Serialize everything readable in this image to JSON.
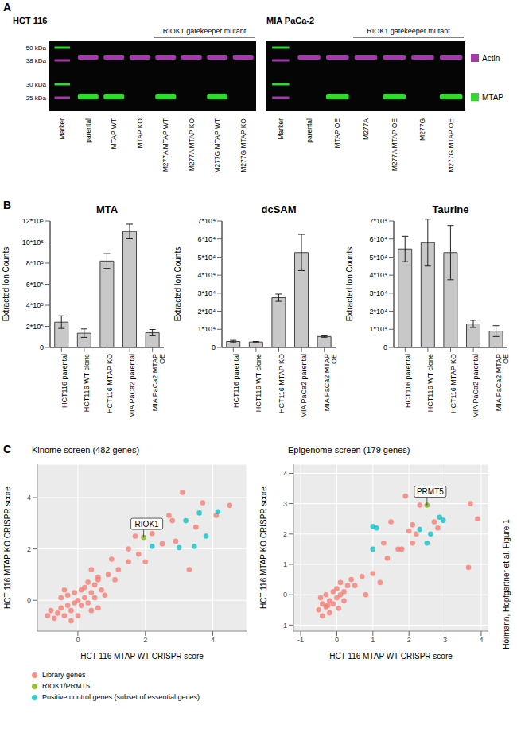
{
  "panel_labels": [
    "A",
    "B",
    "C"
  ],
  "side_text": "Hörmann, Hopfgartner et al. Figure 1",
  "blot_panel": {
    "blots": [
      {
        "title": "HCT 116",
        "group_label": "RIOK1 gatekeeper mutant",
        "group_lanes": [
          4,
          7
        ],
        "marker_labels": [
          "50 kDa",
          "38 kDa",
          "30 kDa",
          "25 kDa"
        ],
        "lanes": [
          {
            "label": "Marker",
            "ladder": true,
            "actin": false,
            "mtap": false
          },
          {
            "label": "parental",
            "ladder": false,
            "actin": true,
            "mtap": true
          },
          {
            "label": "MTAP WT",
            "ladder": false,
            "actin": true,
            "mtap": true
          },
          {
            "label": "MTAP KO",
            "ladder": false,
            "actin": true,
            "mtap": false
          },
          {
            "label": "M277A MTAP WT",
            "ladder": false,
            "actin": true,
            "mtap": true
          },
          {
            "label": "M277A MTAP KO",
            "ladder": false,
            "actin": true,
            "mtap": false
          },
          {
            "label": "M277G MTAP WT",
            "ladder": false,
            "actin": true,
            "mtap": true
          },
          {
            "label": "M277G MTAP KO",
            "ladder": false,
            "actin": true,
            "mtap": false
          }
        ]
      },
      {
        "title": "MIA PaCa-2",
        "group_label": "RIOK1 gatekeeper mutant",
        "group_lanes": [
          3,
          6
        ],
        "lanes": [
          {
            "label": "Marker",
            "ladder": true,
            "actin": false,
            "mtap": false
          },
          {
            "label": "parental",
            "ladder": false,
            "actin": true,
            "mtap": false
          },
          {
            "label": "MTAP OE",
            "ladder": false,
            "actin": true,
            "mtap": true
          },
          {
            "label": "M277A",
            "ladder": false,
            "actin": true,
            "mtap": false
          },
          {
            "label": "M277A MTAP OE",
            "ladder": false,
            "actin": true,
            "mtap": true
          },
          {
            "label": "M277G",
            "ladder": false,
            "actin": true,
            "mtap": false
          },
          {
            "label": "M277G MTAP OE",
            "ladder": false,
            "actin": true,
            "mtap": true
          }
        ]
      }
    ],
    "legend": [
      {
        "text": "Actin",
        "color": "#a23aa9"
      },
      {
        "text": "MTAP",
        "color": "#33d633"
      }
    ]
  },
  "chart_data": [
    {
      "type": "bar",
      "title": "MTA",
      "ylabel": "Extracted Ion Counts",
      "categories": [
        "HCT116 parental",
        "HCT116 WT clone",
        "HCT116 MTAP KO",
        "MIA PaCa2 parental",
        "MIA PaCa2 MTAP OE"
      ],
      "values": [
        240000,
        135000,
        820000,
        1100000,
        140000
      ],
      "errors": [
        60000,
        40000,
        70000,
        70000,
        30000
      ],
      "color": "#c8c8c8",
      "ylim": [
        0,
        1200000
      ],
      "yticks": [
        0,
        {
          "value": 200000,
          "label": "2*10⁵"
        },
        {
          "value": 400000,
          "label": "4*10⁵"
        },
        {
          "value": 600000,
          "label": "6*10⁵"
        },
        {
          "value": 800000,
          "label": "8*10⁵"
        },
        {
          "value": 1000000,
          "label": "10*10⁵"
        },
        {
          "value": 1200000,
          "label": "12*10⁵"
        }
      ]
    },
    {
      "type": "bar",
      "title": "dcSAM",
      "ylabel": "Extracted Ion Counts",
      "categories": [
        "HCT116 parental",
        "HCT116 WT clone",
        "HCT116 MTAP KO",
        "MIA PaCa2 parental",
        "MIA PaCa2 MTAP OE"
      ],
      "values": [
        3300,
        3000,
        27500,
        52500,
        6000
      ],
      "errors": [
        600,
        300,
        2000,
        10000,
        400
      ],
      "color": "#c8c8c8",
      "ylim": [
        0,
        70000
      ],
      "yticks": [
        0,
        {
          "value": 10000,
          "label": "1*10⁴"
        },
        {
          "value": 20000,
          "label": "2*10⁴"
        },
        {
          "value": 30000,
          "label": "3*10⁴"
        },
        {
          "value": 40000,
          "label": "4*10⁴"
        },
        {
          "value": 50000,
          "label": "5*10⁴"
        },
        {
          "value": 60000,
          "label": "6*10⁴"
        },
        {
          "value": 70000,
          "label": "7*10⁴"
        }
      ]
    },
    {
      "type": "bar",
      "title": "Taurine",
      "ylabel": "Extracted Ion Counts",
      "categories": [
        "HCT116 parental",
        "HCT116 WT clone",
        "HCT116 MTAP KO",
        "MIA PaCa2 parental",
        "MIA PaCa2 MTAP OE"
      ],
      "values": [
        54500,
        58000,
        52500,
        13000,
        9000
      ],
      "errors": [
        7000,
        13000,
        15000,
        2000,
        3000
      ],
      "color": "#c8c8c8",
      "ylim": [
        0,
        70000
      ],
      "yticks": [
        0,
        {
          "value": 10000,
          "label": "1*10⁴"
        },
        {
          "value": 20000,
          "label": "2*10⁴"
        },
        {
          "value": 30000,
          "label": "3*10⁴"
        },
        {
          "value": 40000,
          "label": "4*10⁴"
        },
        {
          "value": 50000,
          "label": "5*10⁴"
        },
        {
          "value": 60000,
          "label": "6*10⁴"
        },
        {
          "value": 70000,
          "label": "7*10⁴"
        }
      ]
    },
    {
      "type": "scatter",
      "title": "Kinome screen (482 genes)",
      "xlabel": "HCT 116 MTAP WT CRISPR score",
      "ylabel": "HCT 116 MTAP KO CRISPR score",
      "xlim": [
        -1.2,
        5
      ],
      "xticks": [
        0,
        2,
        4
      ],
      "ylim": [
        -1.2,
        5.3
      ],
      "yticks": [
        0,
        2,
        4
      ],
      "grid": true,
      "legend": "bottom",
      "series": [
        {
          "name": "Library genes",
          "color": "#F8766D",
          "x": [
            -0.6,
            -0.5,
            -0.4,
            -0.3,
            -0.2,
            -0.1,
            0,
            0.1,
            0.2,
            0.3,
            -0.3,
            -0.1,
            0.1,
            0.2,
            0.4,
            -0.5,
            -0.7,
            -0.8,
            0.5,
            0.6,
            0,
            -0.2,
            0.3,
            -0.4,
            0.6,
            0.8,
            -0.9,
            0.4,
            0.7,
            0.5,
            0.9,
            1.1,
            0.4,
            1.2,
            0.6,
            1.5,
            1.0,
            1.8,
            1.5,
            2.0,
            3.3,
            1.7,
            2.2,
            2.5,
            2.9,
            2.4,
            2.8,
            2.7,
            3.5,
            3.7,
            4.1,
            4.5,
            3.1
          ],
          "y": [
            -0.5,
            -0.3,
            -0.6,
            -0.2,
            -0.4,
            -0.1,
            0,
            -0.2,
            0.1,
            -0.1,
            0.2,
            0.3,
            0.4,
            0.5,
            0.3,
            0.1,
            -0.7,
            -0.4,
            0.1,
            -0.3,
            -0.6,
            -0.8,
            0.7,
            0.4,
            0.8,
            0.2,
            -0.6,
            -0.4,
            0.4,
            0.6,
            1.0,
            0.8,
            1.2,
            1.2,
            0.9,
            1.5,
            1.6,
            1.8,
            2.0,
            1.5,
            1.2,
            2.5,
            2.6,
            2.2,
            2.3,
            3.0,
            3.1,
            3.3,
            2.85,
            3.8,
            3.3,
            3.7,
            4.2
          ]
        },
        {
          "name": "RIOK1/PRMT5",
          "color": "#7CAE00",
          "x": [
            1.95
          ],
          "y": [
            2.45
          ]
        },
        {
          "name": "Positive control genes (subset of essential genes)",
          "color": "#00BFC4",
          "x": [
            4.15,
            3.6,
            3.2,
            3.45,
            3.0,
            2.2,
            3.8
          ],
          "y": [
            3.45,
            3.4,
            3.1,
            2.1,
            2.05,
            2.1,
            2.5
          ]
        }
      ],
      "annotations": [
        {
          "text": "RIOK1",
          "x": 1.95,
          "y": 2.45
        }
      ]
    },
    {
      "type": "scatter",
      "title": "Epigenome screen (179 genes)",
      "xlabel": "HCT 116 MTAP WT CRISPR score",
      "ylabel": "HCT 116 MTAP KO CRISPR score",
      "xlim": [
        -1.2,
        4.2
      ],
      "xticks": [
        -1,
        0,
        1,
        2,
        3,
        4
      ],
      "ylim": [
        -1.2,
        4.3
      ],
      "yticks": [
        -1,
        0,
        1,
        2,
        3,
        4
      ],
      "grid": true,
      "series": [
        {
          "color": "#F8766D",
          "x": [
            -0.5,
            -0.4,
            -0.3,
            -0.2,
            -0.1,
            0,
            0.1,
            0.2,
            -0.3,
            -0.45,
            -0.2,
            0,
            0.3,
            -0.1,
            0.2,
            -0.4,
            0.1,
            -0.25,
            0.05,
            0.4,
            0.5,
            0.7,
            0.8,
            1.0,
            1.2,
            1.4,
            1.7,
            1.8,
            1.3,
            2.1,
            2.0,
            2.2,
            1.5,
            2.8,
            2.7,
            3.65,
            1.9,
            2.3,
            3.7,
            3.9,
            2.1
          ],
          "y": [
            -0.5,
            -0.3,
            -0.4,
            -0.2,
            -0.3,
            -0.1,
            0,
            0.1,
            0,
            -0.1,
            -0.6,
            0.2,
            0.3,
            0.1,
            -0.2,
            -0.7,
            0.4,
            -0.35,
            -0.45,
            0.5,
            0.3,
            0.6,
            0,
            0.7,
            0.4,
            1.2,
            1.5,
            1.5,
            1.7,
            1.7,
            2.1,
            2.0,
            2.4,
            2.2,
            2.4,
            0.9,
            3.25,
            2.95,
            3.0,
            2.5,
            2.3
          ]
        },
        {
          "color": "#7CAE00",
          "x": [
            2.5
          ],
          "y": [
            2.95
          ]
        },
        {
          "color": "#00BFC4",
          "x": [
            1.0,
            1.1,
            1.0,
            2.3,
            2.5,
            2.6,
            2.85,
            2.95
          ],
          "y": [
            2.25,
            2.2,
            1.5,
            2.15,
            1.7,
            2.0,
            2.55,
            2.45
          ]
        }
      ],
      "annotations": [
        {
          "text": "PRMT5",
          "x": 2.5,
          "y": 2.95
        }
      ]
    }
  ]
}
